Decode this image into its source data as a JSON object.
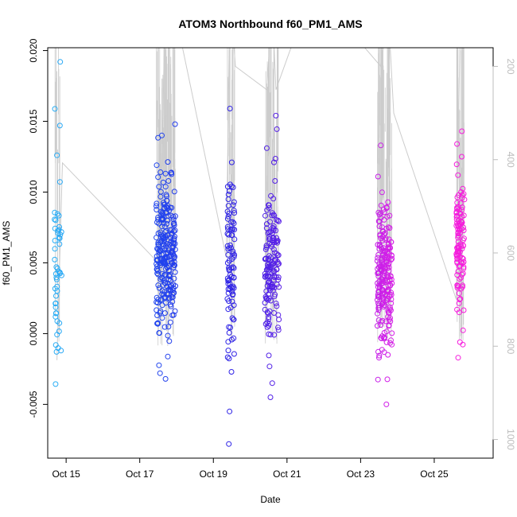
{
  "chart_data": {
    "type": "scatter",
    "title": "ATOM3 Northbound f60_PM1_AMS",
    "xlabel": "Date",
    "ylabel": "f60_PM1_AMS",
    "xlim": [
      14.5,
      26.6
    ],
    "ylim": [
      -0.0088,
      0.0202
    ],
    "x_ticks": [
      {
        "value": 15,
        "label": "Oct 15"
      },
      {
        "value": 17,
        "label": "Oct 17"
      },
      {
        "value": 19,
        "label": "Oct 19"
      },
      {
        "value": 21,
        "label": "Oct 21"
      },
      {
        "value": 23,
        "label": "Oct 23"
      },
      {
        "value": 25,
        "label": "Oct 25"
      }
    ],
    "y_ticks": [
      {
        "value": -0.005,
        "label": "-0.005"
      },
      {
        "value": 0.0,
        "label": "0.000"
      },
      {
        "value": 0.005,
        "label": "0.005"
      },
      {
        "value": 0.01,
        "label": "0.010"
      },
      {
        "value": 0.015,
        "label": "0.015"
      },
      {
        "value": 0.02,
        "label": "0.020"
      }
    ],
    "right_axis": {
      "label_color": "#bdbdbd",
      "range": [
        1040,
        160
      ],
      "ticks": [
        {
          "value": 200,
          "label": "200"
        },
        {
          "value": 400,
          "label": "400"
        },
        {
          "value": 600,
          "label": "600"
        },
        {
          "value": 800,
          "label": "800"
        },
        {
          "value": 1000,
          "label": "1000"
        }
      ]
    },
    "color_gradient": [
      "#29b6f6",
      "#1e50f0",
      "#2a22e6",
      "#7a1ee8",
      "#e61ee8",
      "#ff1ad6"
    ],
    "line_color": "#cccccc",
    "altitude_line": [
      [
        14.75,
        830
      ],
      [
        14.9,
        407
      ],
      [
        17.55,
        625
      ],
      [
        17.7,
        20
      ],
      [
        17.95,
        80
      ],
      [
        19.35,
        610
      ],
      [
        19.45,
        40
      ],
      [
        19.6,
        200
      ],
      [
        20.45,
        250
      ],
      [
        20.6,
        60
      ],
      [
        20.7,
        250
      ],
      [
        21.7,
        30
      ],
      [
        23.55,
        200
      ],
      [
        23.75,
        80
      ],
      [
        23.9,
        300
      ],
      [
        25.6,
        700
      ],
      [
        25.7,
        120
      ]
    ],
    "clusters": [
      {
        "x_start": 14.68,
        "x_end": 14.88,
        "count": 46,
        "y_mean": 0.0045,
        "y_sd": 0.0032,
        "seed": 11,
        "extra_points": [
          [
            14.84,
            0.0192
          ],
          [
            14.83,
            0.0147
          ],
          [
            14.75,
            0.0126
          ],
          [
            14.86,
            -0.0012
          ],
          [
            14.72,
            -0.0008
          ]
        ]
      },
      {
        "x_start": 17.45,
        "x_end": 17.97,
        "count": 260,
        "y_mean": 0.0055,
        "y_sd": 0.0026,
        "seed": 22,
        "extra_points": [
          [
            17.96,
            0.0148
          ],
          [
            17.7,
            -0.0032
          ],
          [
            17.55,
            -0.0028
          ],
          [
            17.6,
            0.014
          ]
        ]
      },
      {
        "x_start": 19.38,
        "x_end": 19.58,
        "count": 90,
        "y_mean": 0.0045,
        "y_sd": 0.0032,
        "seed": 33,
        "extra_points": [
          [
            19.45,
            0.0159
          ],
          [
            19.42,
            -0.0078
          ],
          [
            19.44,
            -0.0055
          ],
          [
            19.5,
            0.0121
          ]
        ]
      },
      {
        "x_start": 20.4,
        "x_end": 20.78,
        "count": 150,
        "y_mean": 0.0048,
        "y_sd": 0.0028,
        "seed": 44,
        "extra_points": [
          [
            20.7,
            0.0154
          ],
          [
            20.45,
            0.0131
          ],
          [
            20.55,
            -0.0045
          ],
          [
            20.6,
            -0.0035
          ]
        ]
      },
      {
        "x_start": 23.45,
        "x_end": 23.85,
        "count": 210,
        "y_mean": 0.0042,
        "y_sd": 0.0028,
        "seed": 55,
        "extra_points": [
          [
            23.7,
            -0.005
          ],
          [
            23.55,
            0.0133
          ],
          [
            23.5,
            -0.0017
          ]
        ]
      },
      {
        "x_start": 25.6,
        "x_end": 25.82,
        "count": 110,
        "y_mean": 0.0062,
        "y_sd": 0.0022,
        "seed": 66,
        "extra_points": [
          [
            25.75,
            0.0143
          ],
          [
            25.65,
            -0.0017
          ],
          [
            25.7,
            -0.0006
          ],
          [
            25.62,
            0.0134
          ]
        ]
      }
    ]
  }
}
